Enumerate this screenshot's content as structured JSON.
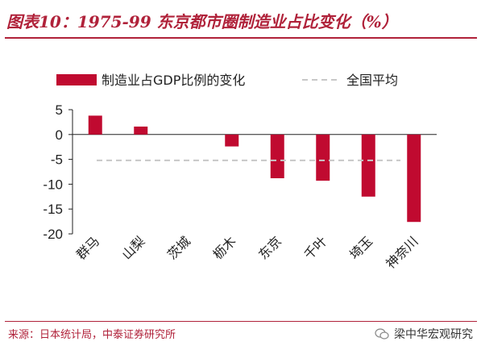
{
  "header": {
    "title": "图表10：1975-99 东京都市圈制造业占比变化（%）"
  },
  "footer": {
    "source": "来源：日本统计局，中泰证券研究所",
    "watermark": "梁中华宏观研究"
  },
  "colors": {
    "bar": "#c00a30",
    "reference_line": "#c8c8c8",
    "title": "#b0223a"
  },
  "chart_data": {
    "type": "bar",
    "categories": [
      "群马",
      "山梨",
      "茨城",
      "枥木",
      "东京",
      "千叶",
      "埼玉",
      "神奈川"
    ],
    "series": [
      {
        "name": "制造业占GDP比例的变化",
        "values": [
          3.8,
          1.6,
          0.0,
          -2.4,
          -8.8,
          -9.3,
          -12.5,
          -17.6
        ]
      }
    ],
    "reference": {
      "name": "全国平均",
      "value": -5.2
    },
    "ylim": [
      -20,
      5
    ],
    "yticks": [
      5,
      0,
      -5,
      -10,
      -15,
      -20
    ],
    "legend_position": "top",
    "grid": false
  }
}
